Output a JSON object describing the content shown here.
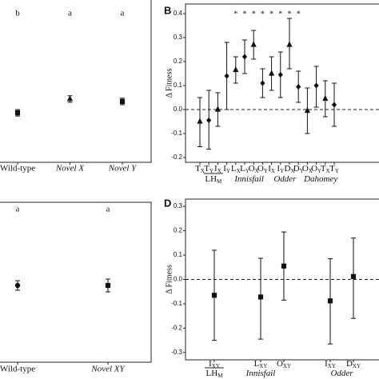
{
  "chart_data": [
    {
      "type": "dot-error",
      "ylim": [
        0,
        1
      ],
      "categories": [
        "Wild-type",
        "Novel X",
        "Novel Y"
      ],
      "values": [
        0.305,
        0.39,
        0.375
      ],
      "upper": [
        0.325,
        0.41,
        0.395
      ],
      "lower": [
        0.285,
        0.37,
        0.355
      ],
      "markers": [
        "square",
        "triangle",
        "square"
      ],
      "letters": [
        "b",
        "a",
        "a"
      ],
      "color": "#111111"
    },
    {
      "type": "dot-error",
      "panel_label": "B",
      "ylabel": "Δ Fitness",
      "ylim": [
        -0.22,
        0.44
      ],
      "yticks": [
        -0.2,
        -0.1,
        {
          "value": 0,
          "label": "0.0"
        },
        0.1,
        0.2,
        0.3,
        0.4
      ],
      "reference_line": 0,
      "categories": [
        {
          "text": "T",
          "sub": "X"
        },
        {
          "text": "T",
          "sub": "Y"
        },
        {
          "text": "I",
          "sub": "X"
        },
        {
          "text": "I",
          "sub": "Y"
        },
        {
          "text": "L",
          "sub": "X"
        },
        {
          "text": "L",
          "sub": "Y"
        },
        {
          "text": "O",
          "sub": "X"
        },
        {
          "text": "O",
          "sub": "Y"
        },
        {
          "text": "I",
          "sub": "X"
        },
        {
          "text": "I",
          "sub": "Y"
        },
        {
          "text": "D",
          "sub": "X"
        },
        {
          "text": "D",
          "sub": "Y"
        },
        {
          "text": "O",
          "sub": "X"
        },
        {
          "text": "O",
          "sub": "Y"
        },
        {
          "text": "T",
          "sub": "X"
        },
        {
          "text": "T",
          "sub": "Y"
        }
      ],
      "values": [
        -0.05,
        -0.045,
        0.0,
        0.14,
        0.165,
        0.22,
        0.27,
        0.11,
        0.15,
        0.145,
        0.27,
        0.095,
        -0.005,
        0.1,
        0.045,
        0.02
      ],
      "upper": [
        0.05,
        0.08,
        0.07,
        0.28,
        0.22,
        0.29,
        0.33,
        0.17,
        0.22,
        0.24,
        0.38,
        0.16,
        0.09,
        0.18,
        0.12,
        0.11
      ],
      "lower": [
        -0.155,
        -0.165,
        -0.07,
        0.0,
        0.11,
        0.15,
        0.21,
        0.05,
        0.08,
        0.05,
        0.17,
        0.03,
        -0.1,
        0.01,
        -0.03,
        -0.07
      ],
      "markers": [
        "triangle",
        "diamond",
        "triangle",
        "diamond",
        "triangle",
        "diamond",
        "triangle",
        "diamond",
        "triangle",
        "diamond",
        "triangle",
        "diamond",
        "triangle",
        "diamond",
        "triangle",
        "diamond"
      ],
      "stars": [
        null,
        null,
        null,
        null,
        "*",
        "*",
        "*",
        "*",
        "*",
        "*",
        "*",
        "*",
        null,
        null,
        null,
        null
      ],
      "groups": [
        {
          "label": "LH",
          "sub": "M",
          "span": [
            0,
            3
          ]
        },
        {
          "label": "Innisfail",
          "span": [
            4,
            7
          ]
        },
        {
          "label": "Odder",
          "span": [
            8,
            11
          ]
        },
        {
          "label": "Dahomey",
          "span": [
            12,
            15
          ]
        }
      ],
      "color": "#111111"
    },
    {
      "type": "dot-error",
      "ylim": [
        0,
        1
      ],
      "categories": [
        "Wild-type",
        "Novel XY"
      ],
      "values": [
        0.48,
        0.48
      ],
      "upper": [
        0.51,
        0.52
      ],
      "lower": [
        0.45,
        0.44
      ],
      "markers": [
        "circle",
        "square"
      ],
      "letters": [
        "a",
        "a"
      ],
      "color": "#111111"
    },
    {
      "type": "dot-error",
      "panel_label": "D",
      "ylabel": "Δ Fitness",
      "ylim": [
        -0.33,
        0.33
      ],
      "yticks": [
        -0.3,
        -0.2,
        -0.1,
        {
          "value": 0,
          "label": "0.0"
        },
        0.1,
        0.2,
        0.3
      ],
      "reference_line": 0,
      "categories": [
        {
          "text": "I",
          "sub": "XY"
        },
        null,
        {
          "text": "L",
          "sub": "XY"
        },
        {
          "text": "O",
          "sub": "XY"
        },
        null,
        {
          "text": "I",
          "sub": "XY"
        },
        {
          "text": "D",
          "sub": "XY"
        }
      ],
      "values": [
        -0.065,
        null,
        -0.072,
        0.055,
        null,
        -0.088,
        0.012
      ],
      "upper": [
        0.12,
        null,
        0.087,
        0.195,
        null,
        0.085,
        0.17
      ],
      "lower": [
        -0.25,
        null,
        -0.245,
        -0.085,
        null,
        -0.265,
        -0.16
      ],
      "markers": [
        "square",
        null,
        "square",
        "square",
        null,
        "square",
        "square"
      ],
      "groups": [
        {
          "label": "LH",
          "sub": "M",
          "span": [
            0,
            0
          ]
        },
        {
          "label": "Innisfail",
          "span": [
            2,
            2
          ]
        },
        {
          "label": "Odder",
          "span": [
            5,
            6
          ]
        }
      ],
      "color": "#111111"
    }
  ]
}
